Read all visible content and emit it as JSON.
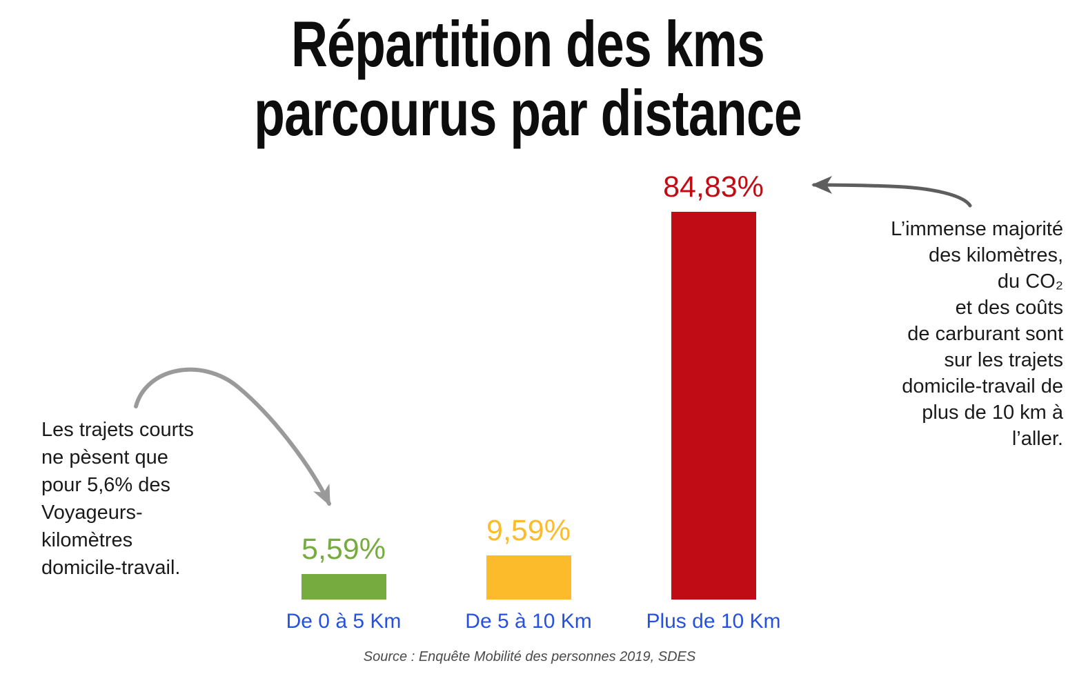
{
  "title": {
    "line1": "Répartition des kms",
    "line2": "parcourus par distance"
  },
  "chart_data": {
    "type": "bar",
    "title": "Répartition des kms parcourus par distance",
    "categories": [
      "De 0 à 5 Km",
      "De 5 à 10 Km",
      "Plus de 10 Km"
    ],
    "values": [
      5.59,
      9.59,
      84.83
    ],
    "value_labels": [
      "5,59%",
      "9,59%",
      "84,83%"
    ],
    "bar_colors": [
      "#76ab40",
      "#fcbb2b",
      "#c00d15"
    ],
    "category_label_color": "#2650e0",
    "xlabel": "",
    "ylabel": "",
    "ylim": [
      0,
      100
    ],
    "grid": false,
    "legend": false,
    "value_label_position": "above-bar",
    "source": "Source : Enquête Mobilité des personnes 2019, SDES"
  },
  "annotations": {
    "left_note": {
      "text": "Les trajets courts\nne pèsent que\npour 5,6% des\nVoyageurs-\nkilomètres\ndomicile-travail.",
      "points_to": "De 0 à 5 Km"
    },
    "right_note": {
      "text": "L’immense majorité\ndes kilomètres,\ndu CO₂\net des coûts\nde carburant sont\nsur les trajets\ndomicile-travail de\nplus de 10 km à\nl’aller.",
      "points_to": "Plus de 10 Km"
    }
  },
  "source_line": "Source : Enquête Mobilité des personnes 2019, SDES",
  "colors": {
    "title_text": "#0d0d0d",
    "body_text": "#1a1a1a",
    "source_text": "#4a4a4a",
    "left_arrow": "#9a9a9a",
    "right_arrow": "#5e5e5e",
    "background": "#ffffff"
  }
}
